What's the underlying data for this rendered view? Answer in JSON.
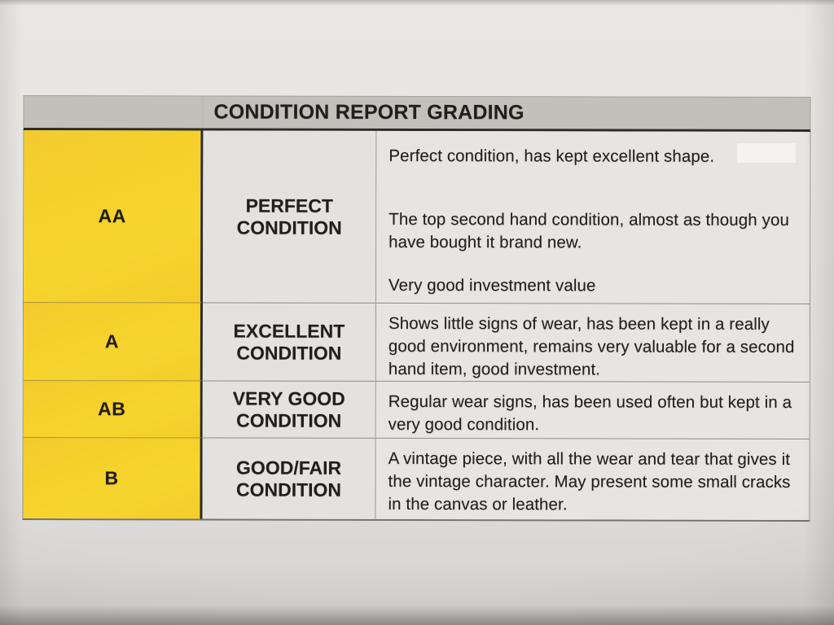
{
  "document": {
    "title": "CONDITION REPORT GRADING",
    "rows": [
      {
        "grade": "AA",
        "condition_line1": "PERFECT",
        "condition_line2": "CONDITION",
        "paragraphs": [
          "Perfect condition, has kept excellent shape.",
          "The top second hand condition, almost as though you have bought it brand new.",
          "Very good investment value"
        ]
      },
      {
        "grade": "A",
        "condition_line1": "EXCELLENT",
        "condition_line2": "CONDITION",
        "paragraphs": [
          "Shows little signs of wear, has been kept in a really good environment, remains very valuable for a second hand item, good investment."
        ]
      },
      {
        "grade": "AB",
        "condition_line1": "VERY GOOD",
        "condition_line2": "CONDITION",
        "paragraphs": [
          "Regular wear signs, has been used often but kept in a very good condition."
        ]
      },
      {
        "grade": "B",
        "condition_line1": "GOOD/FAIR",
        "condition_line2": "CONDITION",
        "paragraphs": [
          "A vintage piece, with all the wear and tear that gives it the vintage character. May present some small cracks in the canvas or leather."
        ]
      }
    ],
    "colors": {
      "grade_column_yellow": "#f5d02b",
      "header_bar_gray": "#c3c0bb",
      "cell_background": "#e6e4e1",
      "paper_background": "#e3e1df",
      "ink": "#211f1c"
    }
  }
}
